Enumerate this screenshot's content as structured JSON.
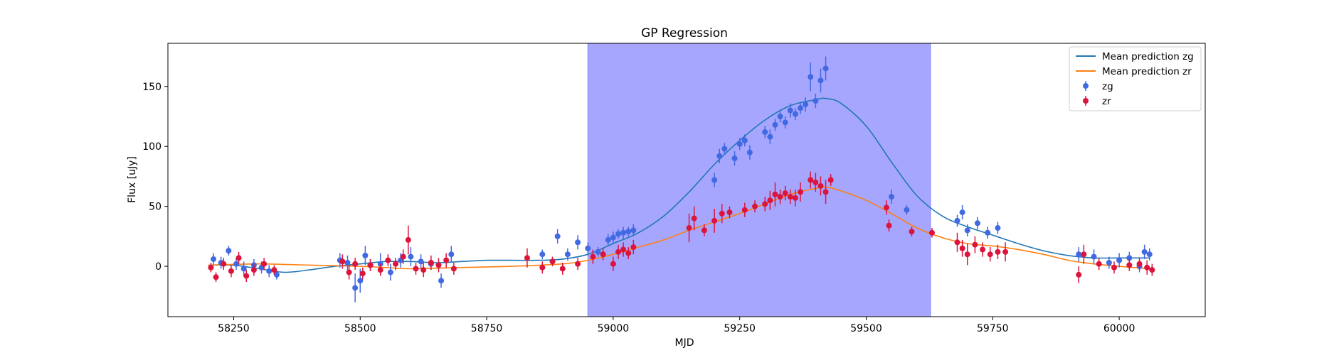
{
  "chart_data": {
    "type": "scatter",
    "title": "GP Regression",
    "xlabel": "MJD",
    "ylabel": "Flux [uJy]",
    "xlim": [
      58120,
      60170
    ],
    "ylim": [
      -42,
      186
    ],
    "xticks": [
      "58250",
      "58500",
      "58750",
      "59000",
      "59250",
      "59500",
      "59750",
      "60000"
    ],
    "yticks": [
      "0",
      "50",
      "100",
      "150"
    ],
    "grid": false,
    "legend_position": "top-right",
    "highlight_span": {
      "x0": 58950,
      "x1": 59627,
      "color": "#a6a6ff"
    },
    "colors": {
      "mean_zg": "#1f77b4",
      "mean_zr": "#ff7f0e",
      "points_zg": "#4169e1",
      "points_zr": "#dc143c"
    },
    "legend": [
      {
        "label": "Mean prediction zg",
        "kind": "line",
        "color": "#1f77b4"
      },
      {
        "label": "Mean prediction zr",
        "kind": "line",
        "color": "#ff7f0e"
      },
      {
        "label": "zg",
        "kind": "marker",
        "color": "#4169e1"
      },
      {
        "label": "zr",
        "kind": "marker",
        "color": "#dc143c"
      }
    ],
    "series": [
      {
        "name": "Mean prediction zg",
        "kind": "line",
        "x": [
          58200,
          58250,
          58300,
          58350,
          58400,
          58450,
          58500,
          58550,
          58600,
          58650,
          58700,
          58750,
          58800,
          58850,
          58900,
          58950,
          59000,
          59050,
          59100,
          59150,
          59200,
          59250,
          59300,
          59350,
          59400,
          59420,
          59450,
          59500,
          59550,
          59600,
          59650,
          59700,
          59750,
          59800,
          59850,
          59900,
          59950,
          60000,
          60060
        ],
        "y": [
          1,
          1,
          -2,
          -5,
          -3,
          0,
          2,
          4,
          4,
          3,
          4,
          5,
          5,
          5,
          6,
          10,
          19,
          28,
          42,
          62,
          85,
          105,
          122,
          134,
          139,
          140,
          136,
          117,
          87,
          59,
          42,
          33,
          26,
          19,
          13,
          9,
          7,
          7,
          7
        ]
      },
      {
        "name": "Mean prediction zr",
        "kind": "line",
        "x": [
          58200,
          58300,
          58400,
          58500,
          58550,
          58600,
          58700,
          58800,
          58900,
          58950,
          59000,
          59050,
          59100,
          59150,
          59200,
          59250,
          59300,
          59350,
          59400,
          59420,
          59450,
          59500,
          59550,
          59600,
          59650,
          59700,
          59750,
          59800,
          59850,
          59900,
          59950,
          60000,
          60060
        ],
        "y": [
          1,
          2,
          1,
          0,
          -1,
          -2,
          -1,
          0,
          2,
          5,
          10,
          16,
          22,
          30,
          37,
          44,
          52,
          60,
          65,
          66,
          63,
          55,
          44,
          32,
          24,
          19,
          17,
          14,
          10,
          5,
          2,
          0,
          -2
        ]
      },
      {
        "name": "zg",
        "kind": "errorbar",
        "x": [
          58210,
          58225,
          58240,
          58255,
          58270,
          58290,
          58305,
          58320,
          58335,
          58460,
          58475,
          58490,
          58500,
          58510,
          58520,
          58540,
          58560,
          58580,
          58600,
          58620,
          58640,
          58660,
          58680,
          58860,
          58890,
          58910,
          58930,
          58950,
          58970,
          58990,
          59000,
          59010,
          59020,
          59030,
          59040,
          59200,
          59210,
          59220,
          59240,
          59250,
          59260,
          59270,
          59300,
          59310,
          59320,
          59330,
          59340,
          59350,
          59360,
          59370,
          59380,
          59390,
          59400,
          59410,
          59420,
          59550,
          59580,
          59680,
          59690,
          59700,
          59720,
          59740,
          59760,
          59920,
          59950,
          59980,
          60000,
          60020,
          60040,
          60050,
          60060
        ],
        "y": [
          6,
          3,
          13,
          2,
          -2,
          1,
          -1,
          -4,
          -7,
          5,
          3,
          -18,
          -12,
          9,
          1,
          2,
          -5,
          5,
          8,
          4,
          2,
          -12,
          10,
          10,
          25,
          10,
          20,
          15,
          12,
          22,
          24,
          27,
          28,
          29,
          30,
          72,
          92,
          98,
          90,
          102,
          105,
          95,
          112,
          108,
          118,
          125,
          120,
          130,
          127,
          132,
          135,
          158,
          138,
          155,
          165,
          58,
          47,
          38,
          45,
          30,
          36,
          28,
          32,
          10,
          8,
          3,
          5,
          7,
          0,
          12,
          10
        ],
        "err": [
          5,
          5,
          4,
          5,
          6,
          5,
          5,
          5,
          4,
          6,
          6,
          12,
          10,
          8,
          5,
          9,
          7,
          6,
          8,
          6,
          5,
          6,
          7,
          4,
          6,
          5,
          6,
          5,
          4,
          5,
          5,
          4,
          5,
          4,
          5,
          6,
          6,
          5,
          6,
          5,
          5,
          6,
          5,
          6,
          5,
          5,
          5,
          6,
          5,
          5,
          6,
          12,
          6,
          10,
          10,
          6,
          4,
          5,
          6,
          5,
          5,
          5,
          5,
          6,
          6,
          5,
          6,
          5,
          5,
          6,
          5
        ]
      },
      {
        "name": "zr",
        "kind": "errorbar",
        "x": [
          58205,
          58215,
          58230,
          58245,
          58260,
          58275,
          58290,
          58310,
          58330,
          58465,
          58478,
          58490,
          58505,
          58520,
          58540,
          58555,
          58570,
          58585,
          58595,
          58610,
          58625,
          58640,
          58655,
          58670,
          58685,
          58830,
          58860,
          58880,
          58900,
          58930,
          58960,
          58980,
          59000,
          59010,
          59020,
          59030,
          59040,
          59150,
          59160,
          59180,
          59200,
          59215,
          59230,
          59260,
          59280,
          59300,
          59310,
          59320,
          59330,
          59340,
          59350,
          59360,
          59370,
          59390,
          59400,
          59410,
          59420,
          59430,
          59540,
          59545,
          59590,
          59630,
          59680,
          59690,
          59700,
          59715,
          59730,
          59745,
          59760,
          59775,
          59920,
          59930,
          59960,
          59990,
          60020,
          60040,
          60055,
          60065
        ],
        "y": [
          -1,
          -9,
          2,
          -4,
          7,
          -8,
          -3,
          2,
          -3,
          4,
          -5,
          2,
          -6,
          1,
          -3,
          5,
          2,
          8,
          22,
          -2,
          -3,
          3,
          1,
          5,
          -2,
          7,
          -1,
          4,
          -2,
          2,
          8,
          10,
          2,
          12,
          14,
          11,
          16,
          32,
          40,
          30,
          38,
          44,
          45,
          47,
          50,
          52,
          55,
          60,
          58,
          61,
          58,
          57,
          62,
          72,
          70,
          67,
          62,
          72,
          49,
          34,
          29,
          28,
          20,
          15,
          10,
          18,
          14,
          10,
          12,
          12,
          -7,
          10,
          2,
          -1,
          1,
          2,
          -1,
          -3
        ],
        "err": [
          4,
          4,
          5,
          5,
          5,
          5,
          5,
          5,
          4,
          6,
          6,
          5,
          5,
          5,
          5,
          5,
          5,
          6,
          12,
          5,
          6,
          6,
          6,
          6,
          5,
          8,
          5,
          4,
          5,
          5,
          6,
          5,
          6,
          6,
          6,
          5,
          6,
          12,
          10,
          5,
          10,
          8,
          5,
          6,
          5,
          6,
          8,
          10,
          6,
          6,
          6,
          7,
          8,
          7,
          8,
          8,
          10,
          5,
          6,
          5,
          4,
          4,
          8,
          7,
          9,
          7,
          6,
          6,
          6,
          8,
          7,
          8,
          5,
          5,
          5,
          5,
          6,
          5
        ]
      }
    ]
  }
}
